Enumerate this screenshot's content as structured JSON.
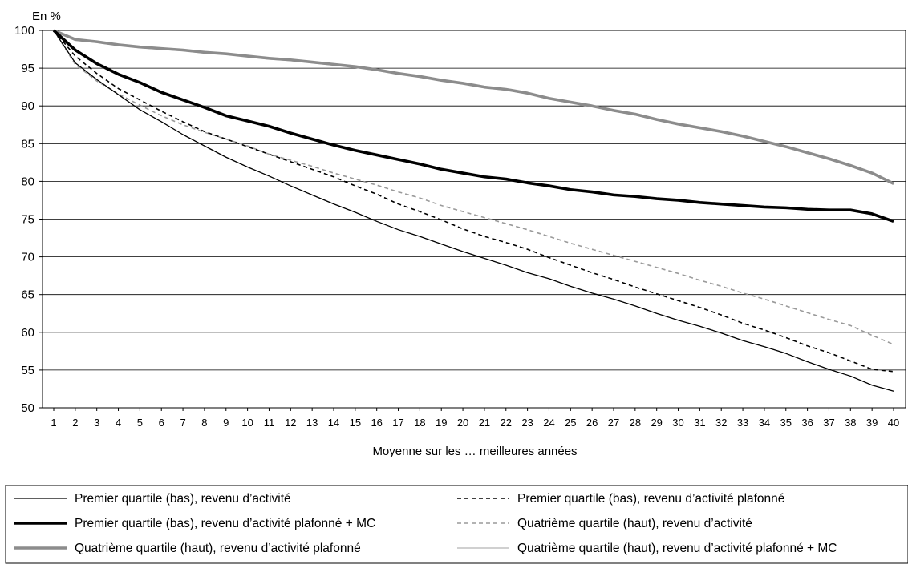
{
  "chart_data": {
    "type": "line",
    "ylabel": "En %",
    "xlabel": "Moyenne sur les … meilleures années",
    "ylim": [
      50,
      100
    ],
    "yticks": [
      50,
      55,
      60,
      65,
      70,
      75,
      80,
      85,
      90,
      95,
      100
    ],
    "grid": "horizontal",
    "legend": "bottom",
    "x": [
      1,
      2,
      3,
      4,
      5,
      6,
      7,
      8,
      9,
      10,
      11,
      12,
      13,
      14,
      15,
      16,
      17,
      18,
      19,
      20,
      21,
      22,
      23,
      24,
      25,
      26,
      27,
      28,
      29,
      30,
      31,
      32,
      33,
      34,
      35,
      36,
      37,
      38,
      39,
      40
    ],
    "series": [
      {
        "name": "Premier quartile (bas), revenu d’activité",
        "color": "#000000",
        "width": 1.3,
        "dash": "",
        "values": [
          100,
          95.7,
          93.5,
          91.5,
          89.5,
          87.9,
          86.2,
          84.7,
          83.2,
          81.9,
          80.7,
          79.4,
          78.2,
          77.0,
          75.9,
          74.7,
          73.6,
          72.7,
          71.7,
          70.7,
          69.8,
          68.9,
          67.9,
          67.1,
          66.1,
          65.2,
          64.4,
          63.5,
          62.5,
          61.6,
          60.8,
          59.9,
          58.9,
          58.1,
          57.2,
          56.1,
          55.1,
          54.2,
          53.0,
          52.2
        ]
      },
      {
        "name": "Premier quartile (bas), revenu d’activité plafonné",
        "color": "#000000",
        "width": 1.6,
        "dash": "5,4",
        "values": [
          100,
          96.6,
          94.3,
          92.3,
          90.8,
          89.3,
          87.9,
          86.6,
          85.6,
          84.6,
          83.6,
          82.6,
          81.6,
          80.6,
          79.4,
          78.3,
          77.0,
          76.0,
          74.9,
          73.7,
          72.7,
          71.9,
          71.0,
          69.9,
          68.9,
          67.9,
          67.0,
          66.0,
          65.1,
          64.2,
          63.3,
          62.3,
          61.2,
          60.3,
          59.3,
          58.2,
          57.3,
          56.2,
          55.1,
          54.8
        ]
      },
      {
        "name": "Premier quartile (bas), revenu d’activité plafonné + MC",
        "color": "#000000",
        "width": 3.6,
        "dash": "",
        "values": [
          100,
          97.4,
          95.6,
          94.2,
          93.1,
          91.8,
          90.8,
          89.8,
          88.7,
          88.0,
          87.3,
          86.4,
          85.6,
          84.8,
          84.1,
          83.5,
          82.9,
          82.3,
          81.6,
          81.1,
          80.6,
          80.3,
          79.8,
          79.4,
          78.9,
          78.6,
          78.2,
          78.0,
          77.7,
          77.5,
          77.2,
          77.0,
          76.8,
          76.6,
          76.5,
          76.3,
          76.2,
          76.2,
          75.7,
          74.7
        ]
      },
      {
        "name": "Quatrième quartile (haut), revenu d’activité",
        "color": "#9a9a9a",
        "width": 1.6,
        "dash": "5,4",
        "values": [
          100,
          95.5,
          93.3,
          91.6,
          90.1,
          88.7,
          87.5,
          86.5,
          85.6,
          84.7,
          83.6,
          82.8,
          82.0,
          81.1,
          80.3,
          79.5,
          78.6,
          77.8,
          76.8,
          76.0,
          75.2,
          74.4,
          73.6,
          72.7,
          71.8,
          71.0,
          70.2,
          69.4,
          68.6,
          67.8,
          66.9,
          66.1,
          65.2,
          64.4,
          63.5,
          62.6,
          61.7,
          60.9,
          59.6,
          58.4
        ]
      },
      {
        "name": "Quatrième quartile (haut), revenu d’activité plafonné",
        "color": "#8c8c8c",
        "width": 3.6,
        "dash": "",
        "values": [
          100,
          98.8,
          98.5,
          98.1,
          97.8,
          97.6,
          97.4,
          97.1,
          96.9,
          96.6,
          96.3,
          96.1,
          95.8,
          95.5,
          95.2,
          94.8,
          94.3,
          93.9,
          93.4,
          93.0,
          92.5,
          92.2,
          91.7,
          91.0,
          90.5,
          90.0,
          89.4,
          88.9,
          88.2,
          87.6,
          87.1,
          86.6,
          86.0,
          85.3,
          84.6,
          83.8,
          83.0,
          82.1,
          81.1,
          79.7
        ]
      },
      {
        "name": "Quatrième quartile (haut), revenu d’activité plafonné + MC",
        "color": "#b4b4b4",
        "width": 1.3,
        "dash": "",
        "values": [
          100,
          98.7,
          98.4,
          98.0,
          97.7,
          97.5,
          97.3,
          97.0,
          96.8,
          96.5,
          96.2,
          96.0,
          95.7,
          95.4,
          95.1,
          94.7,
          94.2,
          93.8,
          93.3,
          92.9,
          92.4,
          92.1,
          91.6,
          90.9,
          90.4,
          89.9,
          89.3,
          88.8,
          88.1,
          87.5,
          87.0,
          86.5,
          85.9,
          85.2,
          84.5,
          83.7,
          82.9,
          82.0,
          81.0,
          79.6
        ]
      }
    ]
  }
}
